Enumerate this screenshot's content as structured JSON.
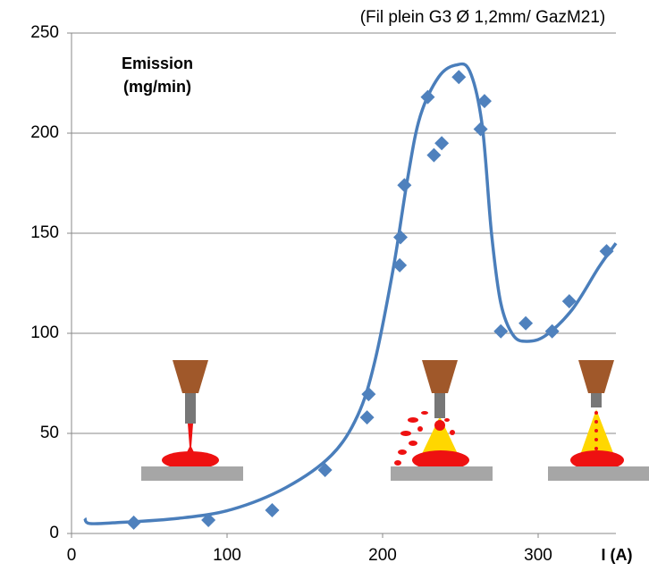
{
  "chart_data": {
    "type": "scatter",
    "subtitle": "(Fil plein G3 Ø 1,2mm/ GazM21)",
    "ylabel": [
      "Emission",
      "(mg/min)"
    ],
    "xlabel": "I (A)",
    "xlim": [
      0,
      350
    ],
    "ylim": [
      0,
      250
    ],
    "xticks": [
      0,
      100,
      200,
      300
    ],
    "yticks": [
      0,
      50,
      100,
      150,
      200,
      250
    ],
    "grid": true,
    "series": [
      {
        "mode": "markers",
        "color": "#4f81bd",
        "x": [
          40,
          88,
          129,
          163,
          190,
          191,
          211,
          211.5,
          214,
          229,
          233,
          238,
          249,
          263,
          265.5,
          276,
          292,
          309,
          320,
          344
        ],
        "values": [
          5.4,
          6.7,
          11.6,
          31.7,
          58,
          69.6,
          134,
          148,
          174,
          218,
          189,
          195,
          228,
          202,
          216,
          101,
          105,
          101,
          116,
          141
        ]
      },
      {
        "mode": "line",
        "color": "#4a7ebb",
        "x": [
          8.6,
          11.5,
          29,
          69,
          103,
          138,
          167,
          184,
          195,
          207,
          216,
          224,
          236,
          247,
          256,
          264,
          270,
          276,
          284,
          293,
          305,
          322,
          339,
          350
        ],
        "values": [
          7.6,
          5,
          5.4,
          7.6,
          12,
          23,
          39,
          59,
          86,
          133,
          177,
          208,
          228,
          234,
          231,
          204,
          150,
          115,
          99,
          96,
          99,
          112,
          133,
          145
        ]
      }
    ]
  }
}
